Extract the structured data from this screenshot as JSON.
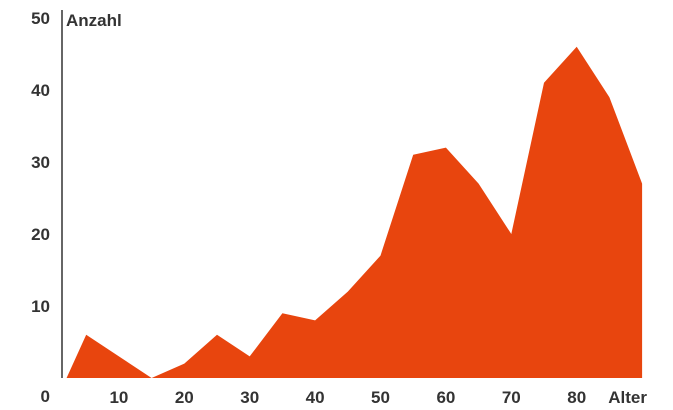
{
  "chart_data": {
    "type": "area",
    "xlabel": "Alter",
    "ylabel": "Anzahl",
    "xlim": [
      0,
      85
    ],
    "ylim": [
      0,
      50
    ],
    "xticks": [
      10,
      20,
      30,
      40,
      50,
      60,
      70,
      80
    ],
    "yticks": [
      0,
      10,
      20,
      30,
      40,
      50
    ],
    "grid": false,
    "color": "#E8450E",
    "x": [
      2,
      5,
      10,
      15,
      20,
      25,
      30,
      35,
      40,
      45,
      50,
      55,
      60,
      65,
      70,
      75,
      80,
      85,
      90
    ],
    "y": [
      0,
      6,
      3,
      0,
      2,
      6,
      3,
      9,
      8,
      12,
      17,
      31,
      32,
      27,
      20,
      41,
      46,
      39,
      27
    ]
  }
}
